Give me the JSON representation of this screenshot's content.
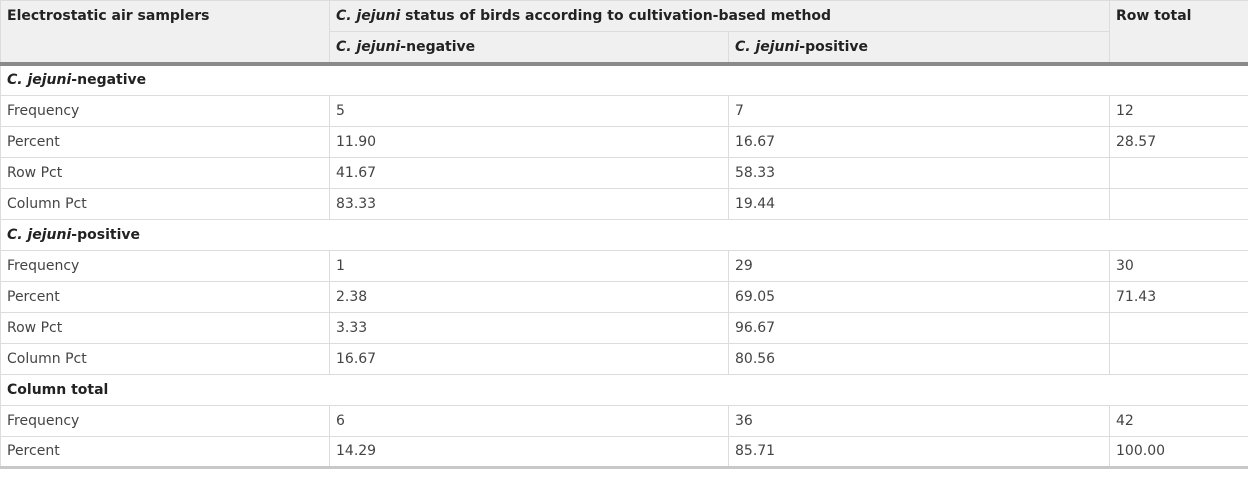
{
  "header": {
    "col1": "Electrostatic air samplers",
    "span_italic": "C. jejuni",
    "span_rest": " status of birds according to cultivation-based method",
    "neg_italic": "C. jejuni",
    "neg_rest": "-negative",
    "pos_italic": "C. jejuni",
    "pos_rest": "-positive",
    "row_total": "Row total"
  },
  "groups": [
    {
      "label_italic": "C. jejuni",
      "label_rest": "-negative",
      "rows": [
        {
          "label": "Frequency",
          "neg": "5",
          "pos": "7",
          "total": "12"
        },
        {
          "label": "Percent",
          "neg": "11.90",
          "pos": "16.67",
          "total": "28.57"
        },
        {
          "label": "Row Pct",
          "neg": "41.67",
          "pos": "58.33",
          "total": ""
        },
        {
          "label": "Column Pct",
          "neg": "83.33",
          "pos": "19.44",
          "total": ""
        }
      ]
    },
    {
      "label_italic": "C. jejuni",
      "label_rest": "-positive",
      "rows": [
        {
          "label": "Frequency",
          "neg": "1",
          "pos": "29",
          "total": "30"
        },
        {
          "label": "Percent",
          "neg": "2.38",
          "pos": "69.05",
          "total": "71.43"
        },
        {
          "label": "Row Pct",
          "neg": "3.33",
          "pos": "96.67",
          "total": ""
        },
        {
          "label": "Column Pct",
          "neg": "16.67",
          "pos": "80.56",
          "total": ""
        }
      ]
    },
    {
      "label_italic": "",
      "label_rest": "Column total",
      "rows": [
        {
          "label": "Frequency",
          "neg": "6",
          "pos": "36",
          "total": "42"
        },
        {
          "label": "Percent",
          "neg": "14.29",
          "pos": "85.71",
          "total": "100.00"
        }
      ]
    }
  ]
}
